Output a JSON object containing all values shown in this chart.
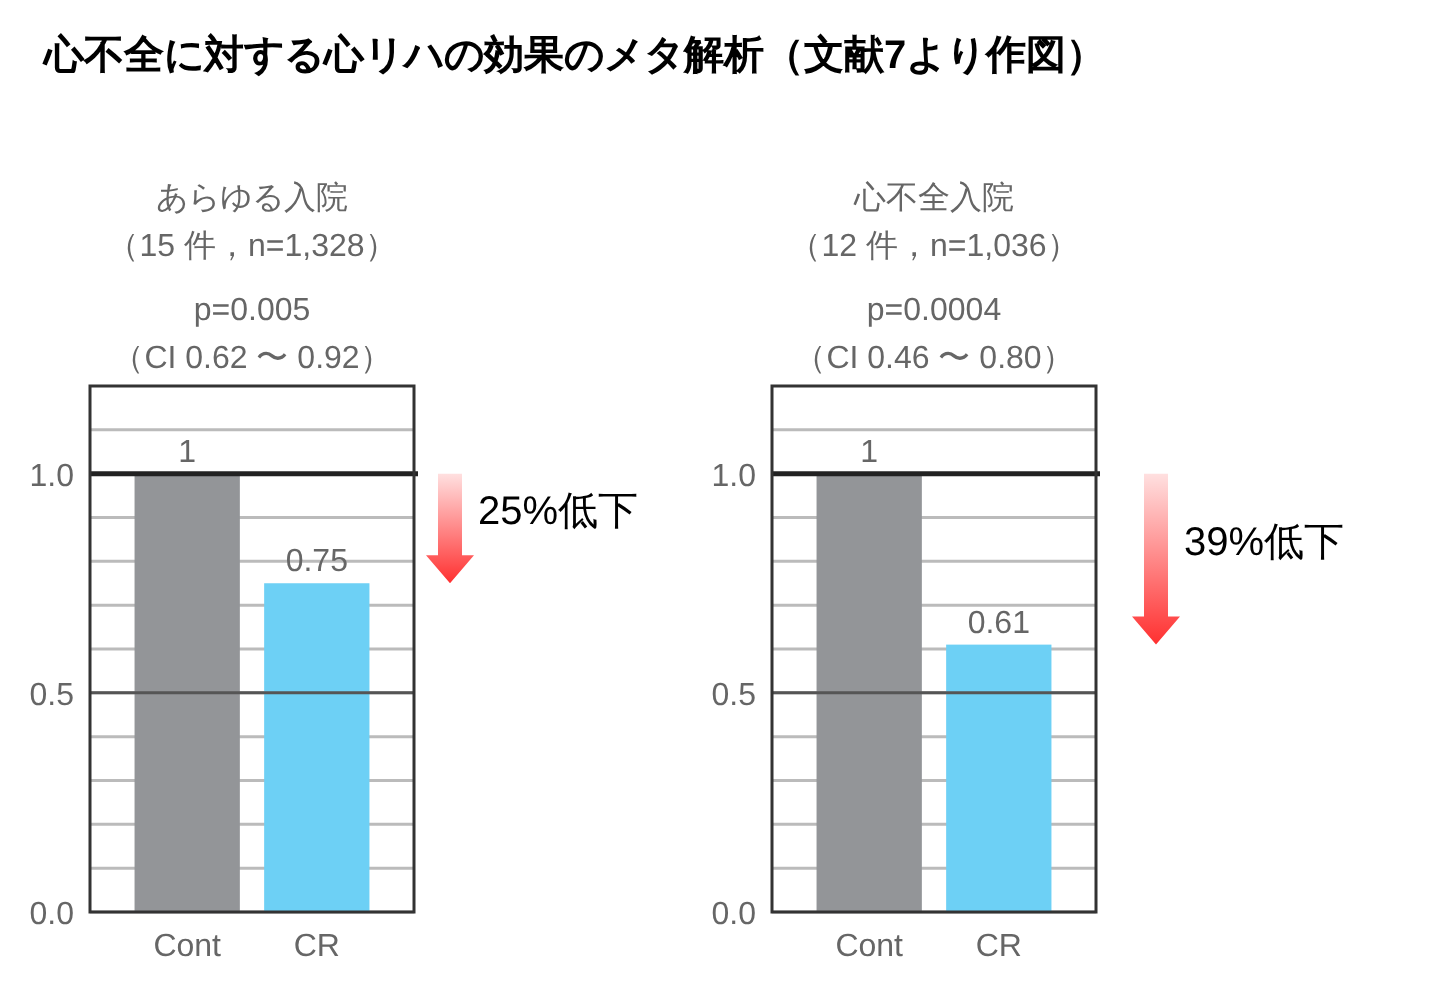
{
  "chart_data": [
    {
      "type": "other",
      "title": "心不全に対する心リハの効果のメタ解析（文献7より作図）"
    },
    {
      "type": "bar",
      "title": "あらゆる入院",
      "subtitle": "（15 件，n=1,328）",
      "annotations": [
        "p=0.005",
        "（CI 0.62 〜 0.92）",
        "25%低下"
      ],
      "categories": [
        "Cont",
        "CR"
      ],
      "values": [
        1,
        0.75
      ],
      "colors": [
        "#939598",
        "#6dd0f5"
      ],
      "ylim": [
        0,
        1.2
      ],
      "yticks": [
        {
          "value": 0,
          "label": "0.0"
        },
        {
          "value": 0.1,
          "label": null
        },
        {
          "value": 0.2,
          "label": null
        },
        {
          "value": 0.3,
          "label": null
        },
        {
          "value": 0.4,
          "label": null
        },
        {
          "value": 0.5,
          "label": "0.5"
        },
        {
          "value": 0.6,
          "label": null
        },
        {
          "value": 0.7,
          "label": null
        },
        {
          "value": 0.8,
          "label": null
        },
        {
          "value": 0.9,
          "label": null
        },
        {
          "value": 1,
          "label": "1.0"
        },
        {
          "value": 1.1,
          "label": null
        }
      ],
      "ref_lines": [
        {
          "axis": "y",
          "value": 1,
          "color": "#222222"
        },
        {
          "axis": "y",
          "value": 0.5,
          "color": "#555555"
        }
      ],
      "grid": "y",
      "data_labels": true
    },
    {
      "type": "bar",
      "title": "心不全入院",
      "subtitle": "（12 件，n=1,036）",
      "annotations": [
        "p=0.0004",
        "（CI 0.46 〜 0.80）",
        "39%低下"
      ],
      "categories": [
        "Cont",
        "CR"
      ],
      "values": [
        1,
        0.61
      ],
      "colors": [
        "#939598",
        "#6dd0f5"
      ],
      "ylim": [
        0,
        1.2
      ],
      "yticks": [
        {
          "value": 0,
          "label": "0.0"
        },
        {
          "value": 0.1,
          "label": null
        },
        {
          "value": 0.2,
          "label": null
        },
        {
          "value": 0.3,
          "label": null
        },
        {
          "value": 0.4,
          "label": null
        },
        {
          "value": 0.5,
          "label": "0.5"
        },
        {
          "value": 0.6,
          "label": null
        },
        {
          "value": 0.7,
          "label": null
        },
        {
          "value": 0.8,
          "label": null
        },
        {
          "value": 0.9,
          "label": null
        },
        {
          "value": 1,
          "label": "1.0"
        },
        {
          "value": 1.1,
          "label": null
        }
      ],
      "ref_lines": [
        {
          "axis": "y",
          "value": 1,
          "color": "#222222"
        },
        {
          "axis": "y",
          "value": 0.5,
          "color": "#555555"
        }
      ],
      "grid": "y",
      "data_labels": true
    }
  ]
}
